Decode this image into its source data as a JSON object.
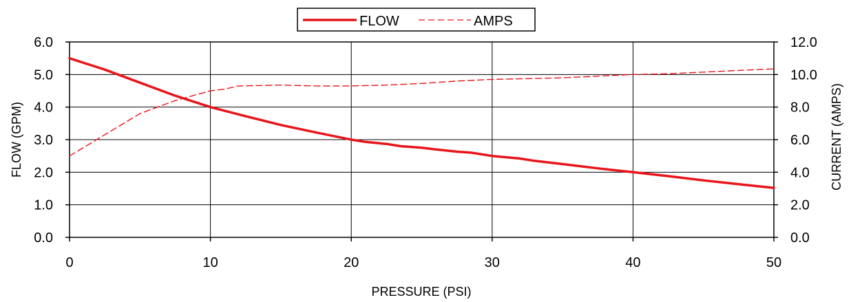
{
  "chart_data": {
    "type": "line",
    "title": "",
    "xlabel": "PRESSURE (PSI)",
    "ylabel": "FLOW (GPM)",
    "y2label": "CURRENT (AMPS)",
    "xlim": [
      0,
      50
    ],
    "ylim": [
      0,
      6
    ],
    "y2lim": [
      0,
      12
    ],
    "x_ticks": [
      "0",
      "10",
      "20",
      "30",
      "40",
      "50"
    ],
    "y_ticks": [
      "0.0",
      "1.0",
      "2.0",
      "3.0",
      "4.0",
      "5.0",
      "6.0"
    ],
    "y2_ticks": [
      "0.0",
      "2.0",
      "4.0",
      "6.0",
      "8.0",
      "10.0",
      "12.0"
    ],
    "grid": true,
    "legend_position": "top-center",
    "series": [
      {
        "name": "FLOW",
        "axis": "left",
        "style": "solid",
        "color": "#e8141b",
        "x": [
          0,
          2.5,
          5,
          7.5,
          10,
          12.5,
          15,
          17.5,
          20,
          21,
          22.5,
          23.5,
          25,
          26,
          27.5,
          28.5,
          30,
          32,
          33,
          35,
          37.5,
          40,
          42.5,
          45,
          47.5,
          50
        ],
        "y": [
          5.5,
          5.15,
          4.75,
          4.35,
          4.0,
          3.72,
          3.45,
          3.22,
          3.0,
          2.93,
          2.87,
          2.8,
          2.75,
          2.7,
          2.63,
          2.6,
          2.5,
          2.42,
          2.35,
          2.25,
          2.12,
          2.0,
          1.88,
          1.75,
          1.63,
          1.52
        ]
      },
      {
        "name": "AMPS",
        "axis": "right",
        "style": "dashed",
        "color": "#e8141b",
        "x": [
          0,
          2.5,
          5,
          7.5,
          10,
          11,
          12,
          15,
          17.5,
          20,
          22.5,
          25,
          27.5,
          30,
          32.5,
          35,
          37.5,
          40,
          42.5,
          45,
          47.5,
          50
        ],
        "y": [
          5.0,
          6.3,
          7.6,
          8.4,
          9.0,
          9.1,
          9.3,
          9.35,
          9.3,
          9.3,
          9.35,
          9.45,
          9.6,
          9.7,
          9.75,
          9.8,
          9.9,
          10.0,
          10.05,
          10.15,
          10.25,
          10.35
        ]
      }
    ]
  }
}
